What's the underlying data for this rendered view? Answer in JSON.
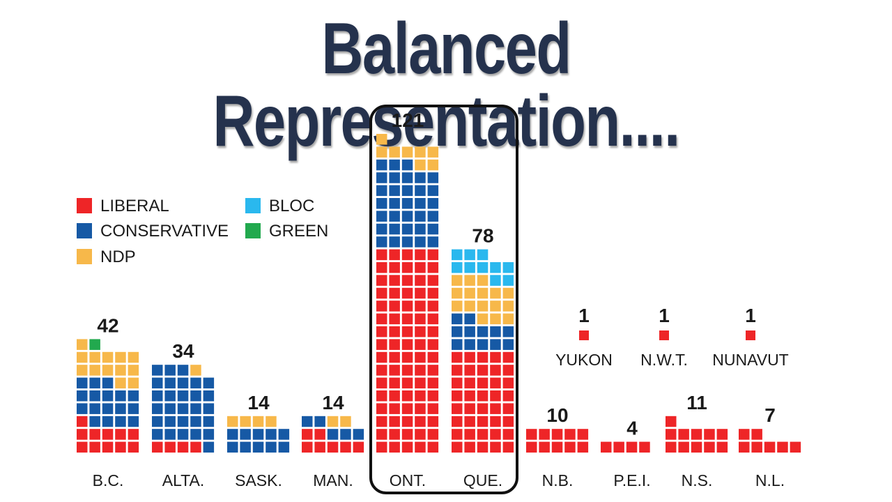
{
  "title": "Balanced Representation....",
  "colors": {
    "liberal": "#ee2527",
    "conservative": "#1659a5",
    "ndp": "#f7b84a",
    "bloc": "#2ab8ee",
    "green": "#22a94e",
    "title": "#25324d",
    "highlight_border": "#111111"
  },
  "chart_data": {
    "type": "waffle",
    "legend": {
      "placement": "top-left",
      "entries": [
        {
          "key": "liberal",
          "label": "LIBERAL"
        },
        {
          "key": "conservative",
          "label": "CONSERVATIVE"
        },
        {
          "key": "ndp",
          "label": "NDP"
        },
        {
          "key": "bloc",
          "label": "BLOC"
        },
        {
          "key": "green",
          "label": "GREEN"
        }
      ]
    },
    "highlight": [
      "ONT.",
      "QUE."
    ],
    "provinces": [
      {
        "label": "B.C.",
        "total": 42,
        "seats": {
          "liberal": 11,
          "conservative": 17,
          "ndp": 13,
          "green": 1
        }
      },
      {
        "label": "ALTA.",
        "total": 34,
        "seats": {
          "liberal": 4,
          "conservative": 29,
          "ndp": 1
        }
      },
      {
        "label": "SASK.",
        "total": 14,
        "seats": {
          "conservative": 10,
          "ndp": 4
        }
      },
      {
        "label": "MAN.",
        "total": 14,
        "seats": {
          "liberal": 7,
          "conservative": 5,
          "ndp": 2
        }
      },
      {
        "label": "ONT.",
        "total": 121,
        "seats": {
          "liberal": 80,
          "conservative": 33,
          "ndp": 8
        }
      },
      {
        "label": "QUE.",
        "total": 78,
        "seats": {
          "liberal": 40,
          "conservative": 12,
          "ndp": 16,
          "bloc": 10
        }
      },
      {
        "label": "N.B.",
        "total": 10,
        "seats": {
          "liberal": 10
        }
      },
      {
        "label": "P.E.I.",
        "total": 4,
        "seats": {
          "liberal": 4
        }
      },
      {
        "label": "N.S.",
        "total": 11,
        "seats": {
          "liberal": 11
        }
      },
      {
        "label": "N.L.",
        "total": 7,
        "seats": {
          "liberal": 7
        }
      }
    ],
    "territories": [
      {
        "label": "YUKON",
        "total": 1,
        "seats": {
          "liberal": 1
        }
      },
      {
        "label": "N.W.T.",
        "total": 1,
        "seats": {
          "liberal": 1
        }
      },
      {
        "label": "NUNAVUT",
        "total": 1,
        "seats": {
          "liberal": 1
        }
      }
    ]
  }
}
